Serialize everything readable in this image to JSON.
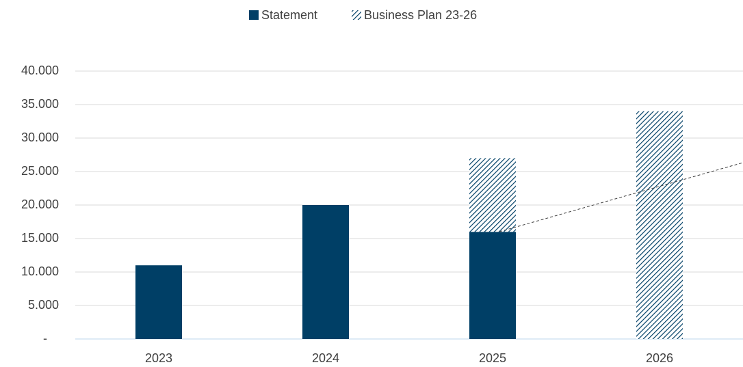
{
  "chart_data": {
    "type": "stacked_bar",
    "categories": [
      "2023",
      "2024",
      "2025",
      "2026"
    ],
    "series": [
      {
        "name": "Statement",
        "color": "#003f66",
        "values": [
          11000,
          20000,
          16000,
          null
        ]
      },
      {
        "name": "Business Plan 23-26",
        "color": "#003f66",
        "pattern": "hatch",
        "values": [
          null,
          null,
          11000,
          34000
        ]
      }
    ],
    "ylim": [
      0,
      40000
    ],
    "yticks": [
      {
        "value": 0,
        "label": "-"
      },
      {
        "value": 5000,
        "label": "5.000"
      },
      {
        "value": 10000,
        "label": "10.000"
      },
      {
        "value": 15000,
        "label": "15.000"
      },
      {
        "value": 20000,
        "label": "20.000"
      },
      {
        "value": 25000,
        "label": "25.000"
      },
      {
        "value": 30000,
        "label": "30.000"
      },
      {
        "value": 35000,
        "label": "35.000"
      },
      {
        "value": 40000,
        "label": "40.000"
      }
    ],
    "grid": true,
    "legend": "top"
  }
}
